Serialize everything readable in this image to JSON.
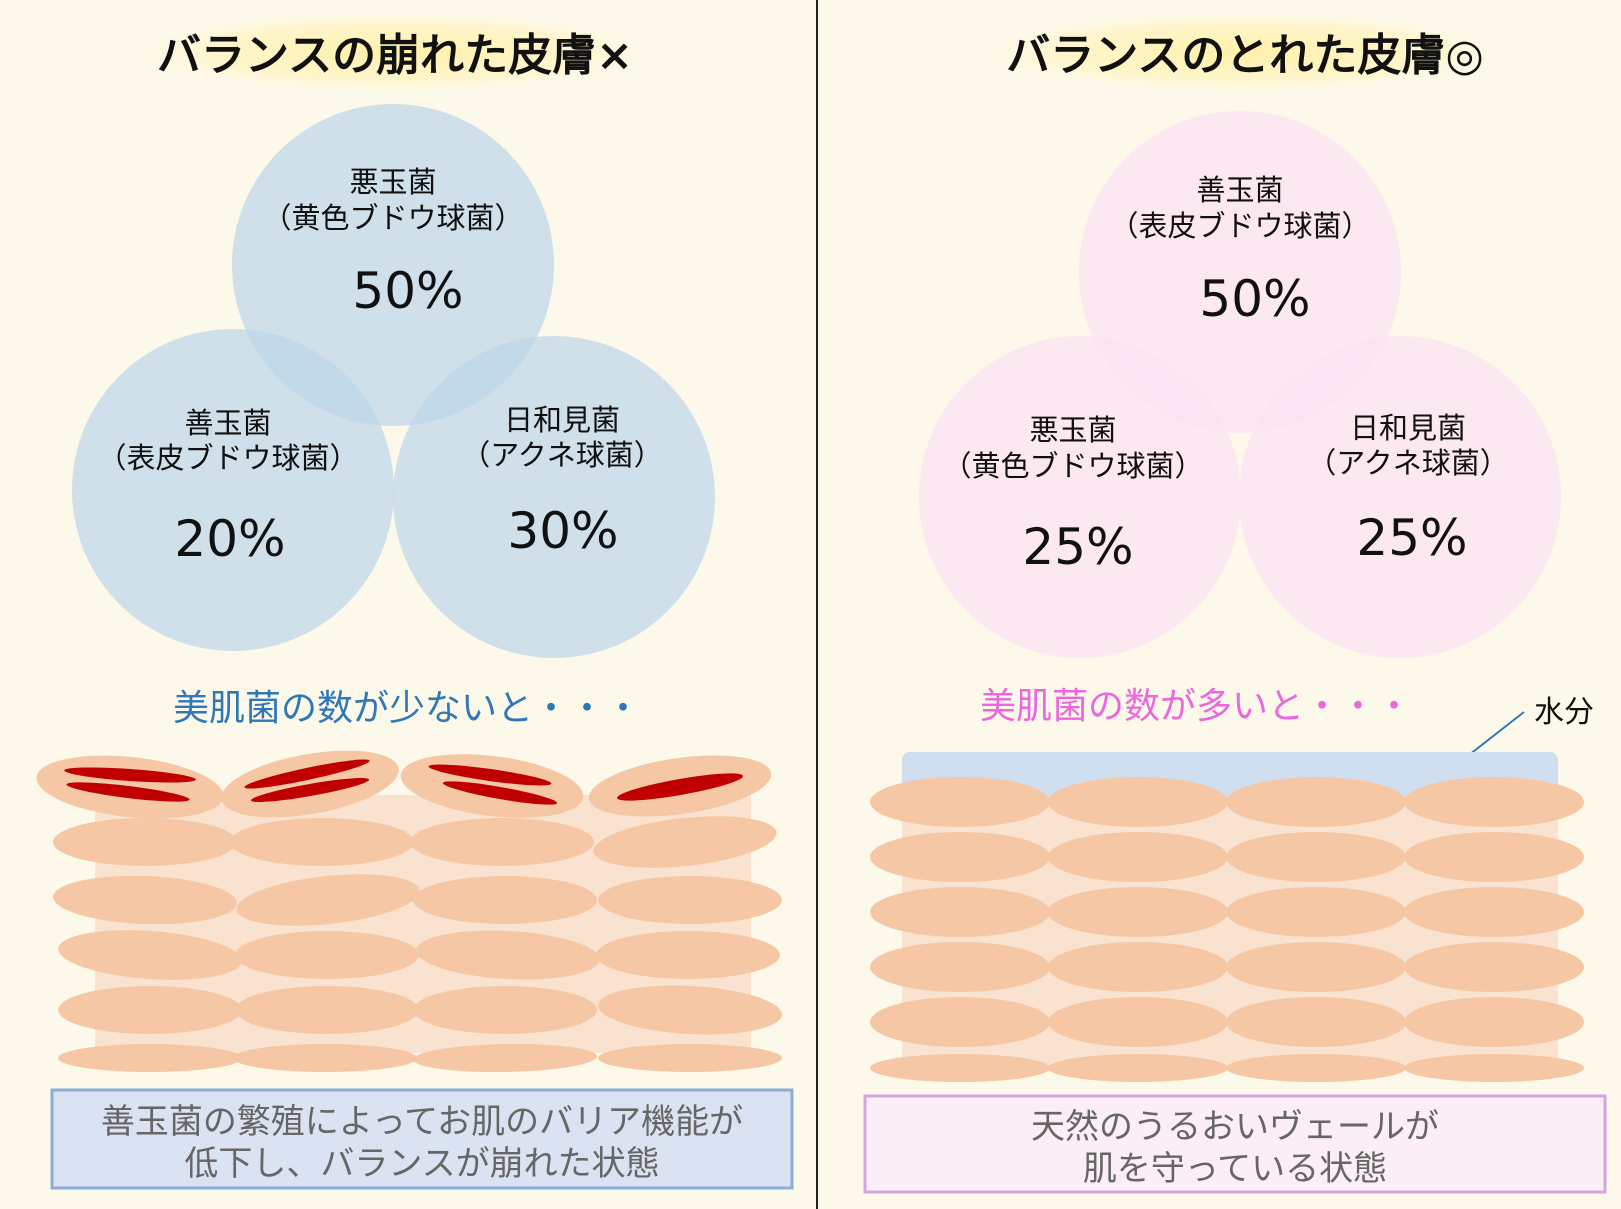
{
  "left": {
    "title": "バランスの崩れた皮膚×",
    "circles": [
      {
        "label1": "悪玉菌",
        "label2": "（黄色ブドウ球菌）",
        "percent": "50%"
      },
      {
        "label1": "善玉菌",
        "label2": "（表皮ブドウ球菌）",
        "percent": "20%"
      },
      {
        "label1": "日和見菌",
        "label2": "（アクネ球菌）",
        "percent": "30%"
      }
    ],
    "subtitle": "美肌菌の数が少ないと・・・",
    "caption_line1": "善玉菌の繁殖によってお肌のバリア機能が",
    "caption_line2": "低下し、バランスが崩れた状態"
  },
  "right": {
    "title": "バランスのとれた皮膚◎",
    "circles": [
      {
        "label1": "善玉菌",
        "label2": "（表皮ブドウ球菌）",
        "percent": "50%"
      },
      {
        "label1": "悪玉菌",
        "label2": "（黄色ブドウ球菌）",
        "percent": "25%"
      },
      {
        "label1": "日和見菌",
        "label2": "（アクネ球菌）",
        "percent": "25%"
      }
    ],
    "subtitle": "美肌菌の数が多いと・・・",
    "water_label": "水分",
    "caption_line1": "天然のうるおいヴェールが",
    "caption_line2": "肌を守っている状態"
  },
  "colors": {
    "background": "#fdf9ea",
    "left_circle": "#bcd6ea",
    "right_circle": "#fbe4f3",
    "left_subtitle": "#2f78b8",
    "right_subtitle": "#ee66dd",
    "cell": "#f6c7a4",
    "cell_bg": "#f9e2cf",
    "inflamed": "#c00000",
    "water": "#cfdff0",
    "left_caption_border": "#8aaed8",
    "right_caption_border": "#d7a5dd"
  }
}
